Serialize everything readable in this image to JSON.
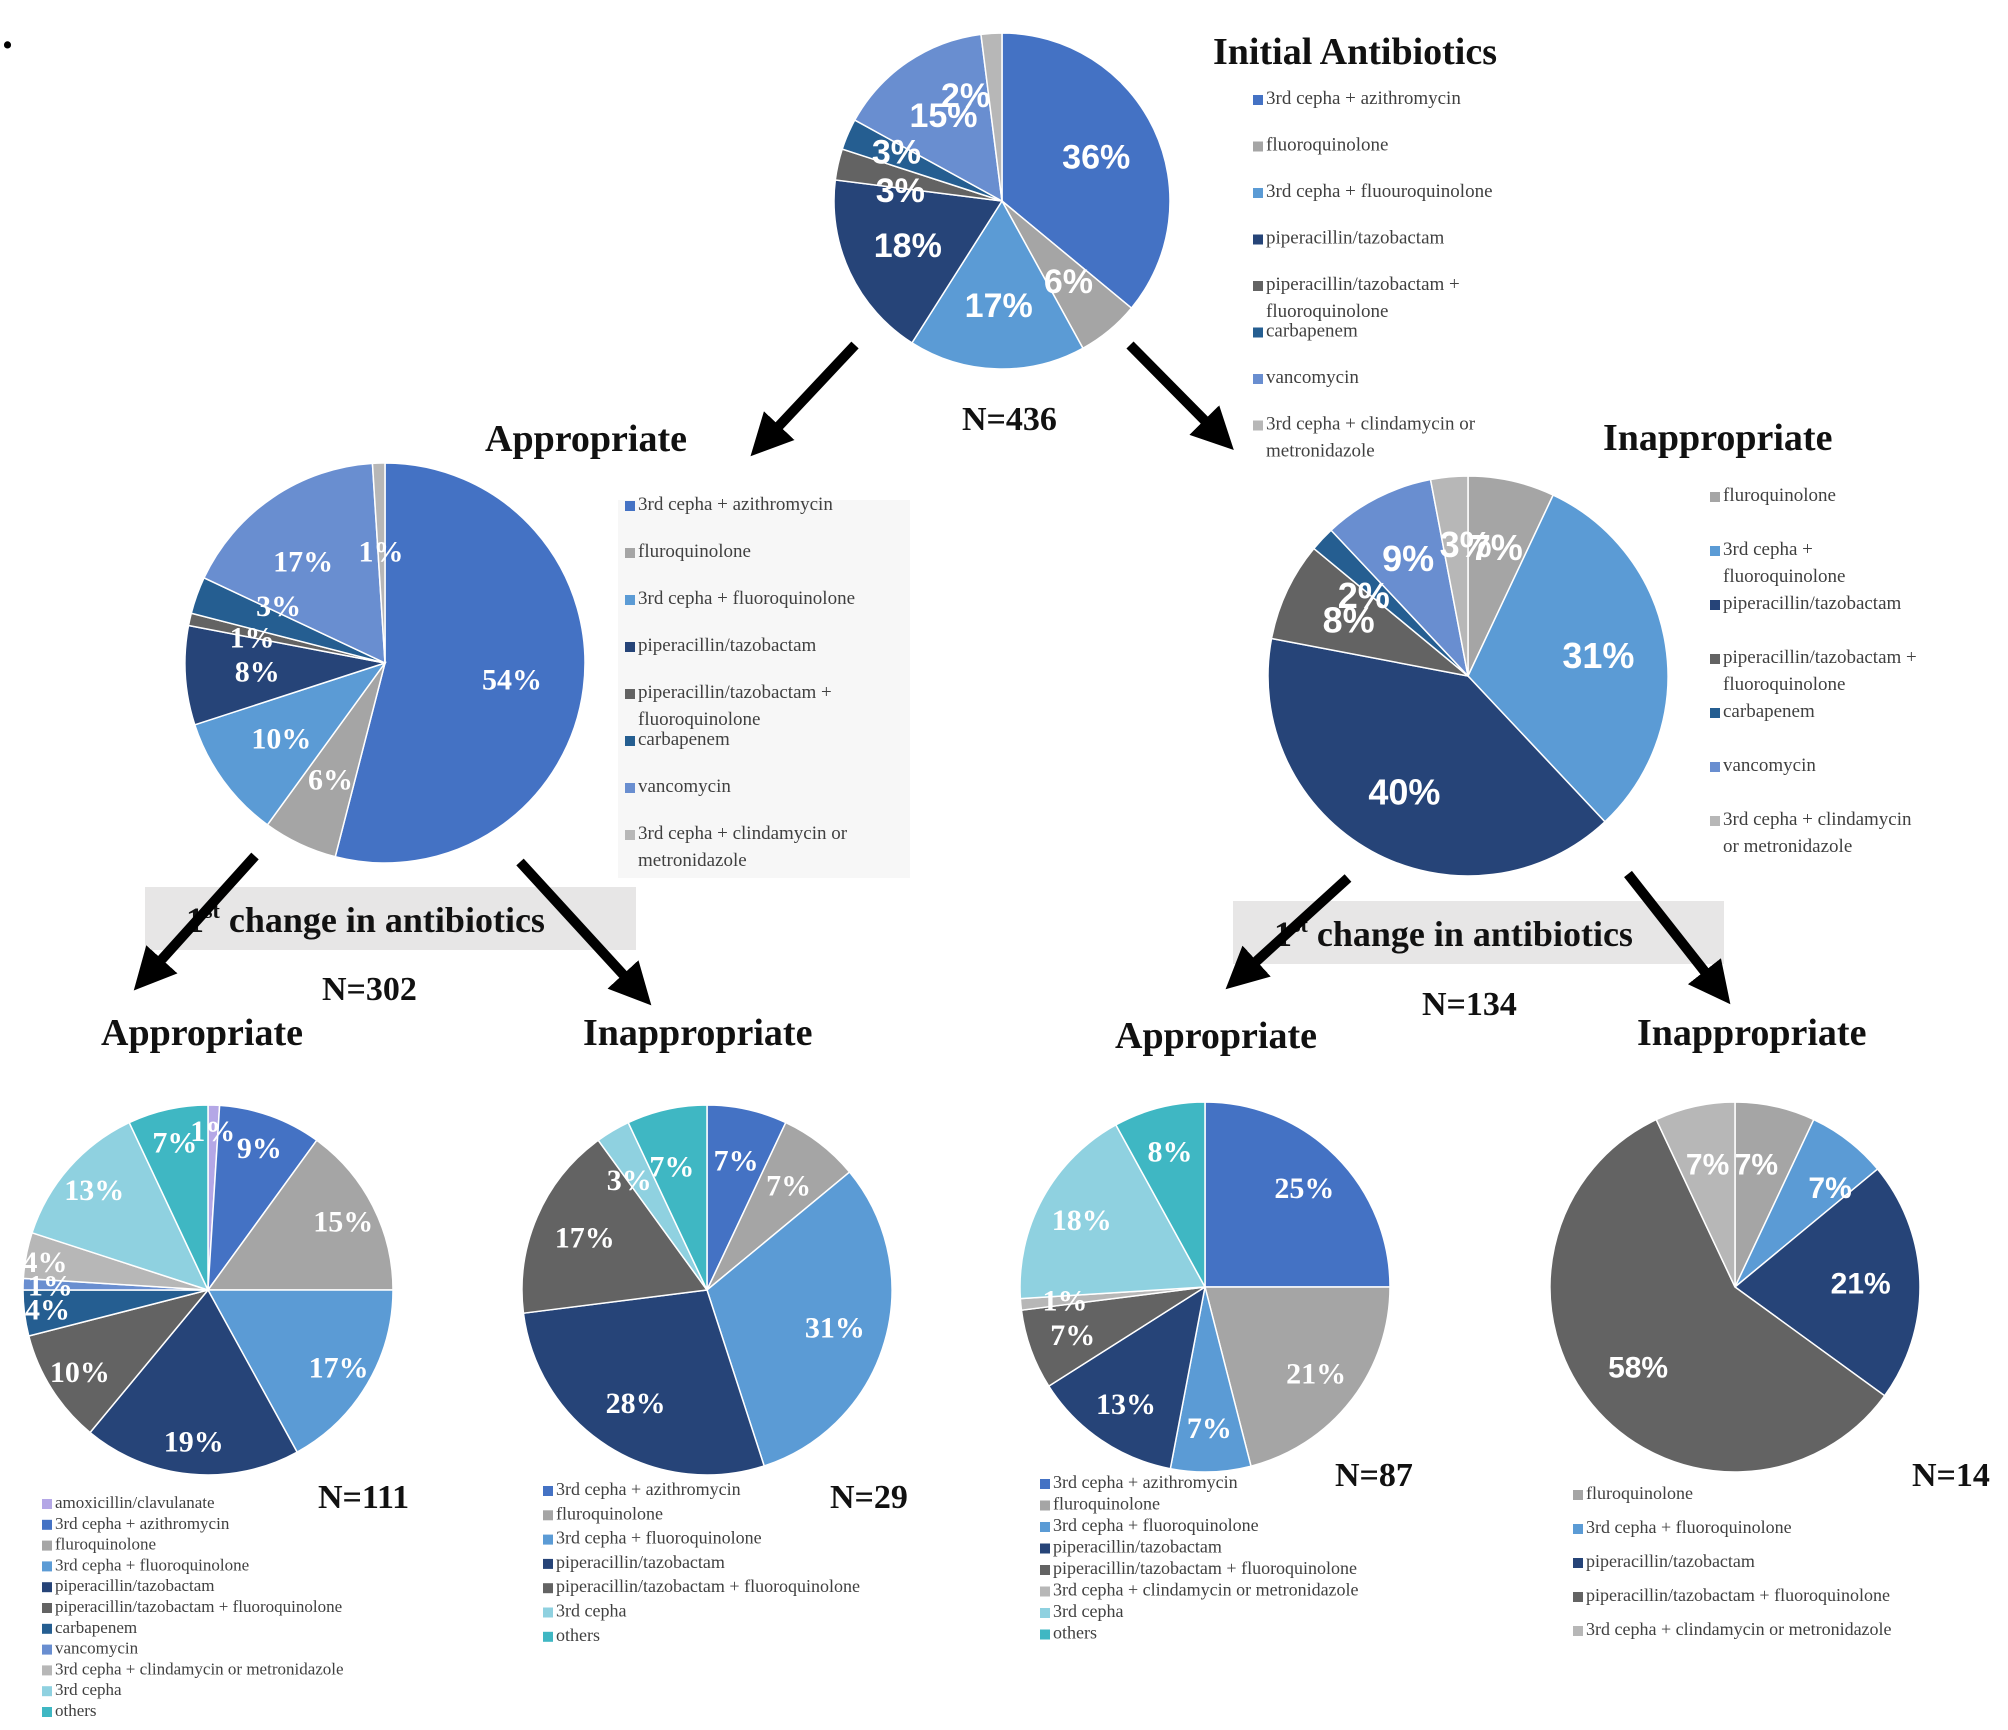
{
  "stray_mark": ".",
  "colors": {
    "3rd_cepha_azithro": "#4472c4",
    "fluoroquinolone": "#a5a5a5",
    "3rd_cepha_fluoro": "#5b9bd5",
    "pip_taz": "#264478",
    "pip_taz_fluoro": "#636363",
    "carbapenem": "#255e91",
    "vancomycin": "#698ed0",
    "3rd_cepha_clinda": "#b7b7b7",
    "amox_clav": "#b4a7e6",
    "3rd_cepha": "#8fd1e0",
    "others": "#3fb7c3"
  },
  "change_label": {
    "prefix": "1",
    "sup": "st",
    "text": " change in antibiotics"
  },
  "chart_data": [
    {
      "id": "initial",
      "type": "pie",
      "title": "Initial Antibiotics",
      "n_label": "N=436",
      "slices": [
        {
          "label": "3rd cepha + azithromycin",
          "value": 36,
          "color": "#4472c4",
          "text": "36%"
        },
        {
          "label": "fluoroquinolone",
          "value": 6,
          "color": "#a5a5a5",
          "text": "6%"
        },
        {
          "label": "3rd cepha + fluouroquinolone",
          "value": 17,
          "color": "#5b9bd5",
          "text": "17%"
        },
        {
          "label": "piperacillin/tazobactam",
          "value": 18,
          "color": "#264478",
          "text": "18%"
        },
        {
          "label": "piperacillin/tazobactam + fluoroquinolone",
          "value": 3,
          "color": "#636363",
          "text": "3%"
        },
        {
          "label": "carbapenem",
          "value": 3,
          "color": "#255e91",
          "text": "3%"
        },
        {
          "label": "vancomycin",
          "value": 15,
          "color": "#698ed0",
          "text": "15%"
        },
        {
          "label": "3rd cepha + clindamycin or metronidazole",
          "value": 2,
          "color": "#b7b7b7",
          "text": "2%"
        }
      ],
      "legend": [
        [
          "3rd cepha + azithromycin"
        ],
        [
          "fluoroquinolone"
        ],
        [
          "3rd cepha + fluouroquinolone"
        ],
        [
          "piperacillin/tazobactam"
        ],
        [
          "piperacillin/tazobactam +",
          "fluoroquinolone"
        ],
        [
          "carbapenem"
        ],
        [
          "vancomycin"
        ],
        [
          "3rd cepha + clindamycin or",
          "metronidazole"
        ]
      ]
    },
    {
      "id": "appropriate",
      "type": "pie",
      "title": "Appropriate",
      "n_label": "N=302",
      "slices": [
        {
          "label": "3rd cepha + azithromycin",
          "value": 54,
          "color": "#4472c4",
          "text": "54%"
        },
        {
          "label": "fluroquinolone",
          "value": 6,
          "color": "#a5a5a5",
          "text": "6%"
        },
        {
          "label": "3rd cepha + fluoroquinolone",
          "value": 10,
          "color": "#5b9bd5",
          "text": "10%"
        },
        {
          "label": "piperacillin/tazobactam",
          "value": 8,
          "color": "#264478",
          "text": "8%"
        },
        {
          "label": "piperacillin/tazobactam + fluoroquinolone",
          "value": 1,
          "color": "#636363",
          "text": "1%"
        },
        {
          "label": "carbapenem",
          "value": 3,
          "color": "#255e91",
          "text": "3%"
        },
        {
          "label": "vancomycin",
          "value": 17,
          "color": "#698ed0",
          "text": "17%"
        },
        {
          "label": "3rd cepha + clindamycin or metronidazole",
          "value": 1,
          "color": "#b7b7b7",
          "text": "1%"
        }
      ],
      "legend": [
        [
          "3rd cepha + azithromycin"
        ],
        [
          "fluroquinolone"
        ],
        [
          "3rd cepha + fluoroquinolone"
        ],
        [
          "piperacillin/tazobactam"
        ],
        [
          "piperacillin/tazobactam +",
          "fluoroquinolone"
        ],
        [
          "carbapenem"
        ],
        [
          "vancomycin"
        ],
        [
          "3rd cepha + clindamycin or",
          "metronidazole"
        ]
      ]
    },
    {
      "id": "inappropriate",
      "type": "pie",
      "title": "Inappropriate",
      "n_label": "N=134",
      "slices": [
        {
          "label": "fluroquinolone",
          "value": 7,
          "color": "#a5a5a5",
          "text": "7%"
        },
        {
          "label": "3rd cepha + fluoroquinolone",
          "value": 31,
          "color": "#5b9bd5",
          "text": "31%"
        },
        {
          "label": "piperacillin/tazobactam",
          "value": 40,
          "color": "#264478",
          "text": "40%"
        },
        {
          "label": "piperacillin/tazobactam + fluoroquinolone",
          "value": 8,
          "color": "#636363",
          "text": "8%"
        },
        {
          "label": "carbapenem",
          "value": 2,
          "color": "#255e91",
          "text": "2%"
        },
        {
          "label": "vancomycin",
          "value": 9,
          "color": "#698ed0",
          "text": "9%"
        },
        {
          "label": "3rd cepha + clindamycin or metronidazole",
          "value": 3,
          "color": "#b7b7b7",
          "text": "3%"
        }
      ],
      "legend": [
        [
          "fluroquinolone"
        ],
        [
          "3rd cepha +",
          "fluoroquinolone"
        ],
        [
          "piperacillin/tazobactam"
        ],
        [
          "piperacillin/tazobactam +",
          "fluoroquinolone"
        ],
        [
          "carbapenem"
        ],
        [
          "vancomycin"
        ],
        [
          "3rd cepha + clindamycin",
          "or metronidazole"
        ]
      ]
    },
    {
      "id": "app_app",
      "type": "pie",
      "title": "Appropriate",
      "n_label": "N=111",
      "slices": [
        {
          "label": "amoxicillin/clavulanate",
          "value": 1,
          "color": "#b4a7e6",
          "text": "1%"
        },
        {
          "label": "3rd cepha + azithromycin",
          "value": 9,
          "color": "#4472c4",
          "text": "9%"
        },
        {
          "label": "fluroquinolone",
          "value": 15,
          "color": "#a5a5a5",
          "text": "15%"
        },
        {
          "label": "3rd cepha + fluoroquinolone",
          "value": 17,
          "color": "#5b9bd5",
          "text": "17%"
        },
        {
          "label": "piperacillin/tazobactam",
          "value": 19,
          "color": "#264478",
          "text": "19%"
        },
        {
          "label": "piperacillin/tazobactam + fluoroquinolone",
          "value": 10,
          "color": "#636363",
          "text": "10%"
        },
        {
          "label": "carbapenem",
          "value": 4,
          "color": "#255e91",
          "text": "4%"
        },
        {
          "label": "vancomycin",
          "value": 1,
          "color": "#698ed0",
          "text": "1%"
        },
        {
          "label": "3rd cepha + clindamycin or metronidazole",
          "value": 4,
          "color": "#b7b7b7",
          "text": "4%"
        },
        {
          "label": "3rd cepha",
          "value": 13,
          "color": "#8fd1e0",
          "text": "13%"
        },
        {
          "label": "others",
          "value": 7,
          "color": "#3fb7c3",
          "text": "7%"
        }
      ],
      "legend": [
        [
          "amoxicillin/clavulanate"
        ],
        [
          "3rd cepha + azithromycin"
        ],
        [
          "fluroquinolone"
        ],
        [
          "3rd cepha + fluoroquinolone"
        ],
        [
          "piperacillin/tazobactam"
        ],
        [
          "piperacillin/tazobactam + fluoroquinolone"
        ],
        [
          "carbapenem"
        ],
        [
          "vancomycin"
        ],
        [
          "3rd cepha + clindamycin or metronidazole"
        ],
        [
          "3rd cepha"
        ],
        [
          "others"
        ]
      ]
    },
    {
      "id": "app_inapp",
      "type": "pie",
      "title": "Inappropriate",
      "n_label": "N=29",
      "slices": [
        {
          "label": "3rd cepha + azithromycin",
          "value": 7,
          "color": "#4472c4",
          "text": "7%"
        },
        {
          "label": "fluroquinolone",
          "value": 7,
          "color": "#a5a5a5",
          "text": "7%"
        },
        {
          "label": "3rd cepha + fluoroquinolone",
          "value": 31,
          "color": "#5b9bd5",
          "text": "31%"
        },
        {
          "label": "piperacillin/tazobactam",
          "value": 28,
          "color": "#264478",
          "text": "28%"
        },
        {
          "label": "piperacillin/tazobactam + fluoroquinolone",
          "value": 17,
          "color": "#636363",
          "text": "17%"
        },
        {
          "label": "3rd cepha",
          "value": 3,
          "color": "#8fd1e0",
          "text": "3%"
        },
        {
          "label": "others",
          "value": 7,
          "color": "#3fb7c3",
          "text": "7%"
        }
      ],
      "legend": [
        [
          "3rd cepha + azithromycin"
        ],
        [
          "fluroquinolone"
        ],
        [
          "3rd cepha + fluoroquinolone"
        ],
        [
          "piperacillin/tazobactam"
        ],
        [
          "piperacillin/tazobactam + fluoroquinolone"
        ],
        [
          "3rd cepha"
        ],
        [
          "others"
        ]
      ]
    },
    {
      "id": "inapp_app",
      "type": "pie",
      "title": "Appropriate",
      "n_label": "N=87",
      "slices": [
        {
          "label": "3rd cepha + azithromycin",
          "value": 25,
          "color": "#4472c4",
          "text": "25%"
        },
        {
          "label": "fluroquinolone",
          "value": 21,
          "color": "#a5a5a5",
          "text": "21%"
        },
        {
          "label": "3rd cepha + fluoroquinolone",
          "value": 7,
          "color": "#5b9bd5",
          "text": "7%"
        },
        {
          "label": "piperacillin/tazobactam",
          "value": 13,
          "color": "#264478",
          "text": "13%"
        },
        {
          "label": "piperacillin/tazobactam + fluoroquinolone",
          "value": 7,
          "color": "#636363",
          "text": "7%"
        },
        {
          "label": "3rd cepha + clindamycin or metronidazole",
          "value": 1,
          "color": "#b7b7b7",
          "text": "1%"
        },
        {
          "label": "3rd cepha",
          "value": 18,
          "color": "#8fd1e0",
          "text": "18%"
        },
        {
          "label": "others",
          "value": 8,
          "color": "#3fb7c3",
          "text": "8%"
        }
      ],
      "legend": [
        [
          "3rd cepha + azithromycin"
        ],
        [
          "fluroquinolone"
        ],
        [
          "3rd cepha + fluoroquinolone"
        ],
        [
          "piperacillin/tazobactam"
        ],
        [
          "piperacillin/tazobactam + fluoroquinolone"
        ],
        [
          "3rd cepha + clindamycin or metronidazole"
        ],
        [
          "3rd cepha"
        ],
        [
          "others"
        ]
      ]
    },
    {
      "id": "inapp_inapp",
      "type": "pie",
      "title": "Inappropriate",
      "n_label": "N=14",
      "slices": [
        {
          "label": "fluroquinolone",
          "value": 7,
          "color": "#a5a5a5",
          "text": "7%"
        },
        {
          "label": "3rd cepha + fluoroquinolone",
          "value": 7,
          "color": "#5b9bd5",
          "text": "7%"
        },
        {
          "label": "piperacillin/tazobactam",
          "value": 21,
          "color": "#264478",
          "text": "21%"
        },
        {
          "label": "piperacillin/tazobactam + fluoroquinolone",
          "value": 58,
          "color": "#636363",
          "text": "58%"
        },
        {
          "label": "3rd cepha + clindamycin or metronidazole",
          "value": 7,
          "color": "#b7b7b7",
          "text": "7%"
        }
      ],
      "legend": [
        [
          "fluroquinolone"
        ],
        [
          "3rd cepha + fluoroquinolone"
        ],
        [
          "piperacillin/tazobactam"
        ],
        [
          "piperacillin/tazobactam + fluoroquinolone"
        ],
        [
          "3rd cepha + clindamycin or metronidazole"
        ]
      ]
    }
  ]
}
